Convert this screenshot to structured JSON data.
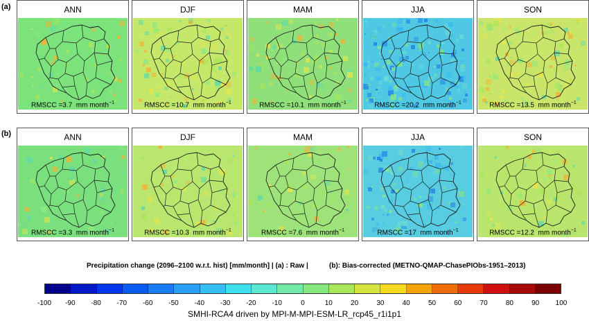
{
  "row_labels": [
    "(a)",
    "(b)"
  ],
  "rows": [
    {
      "panels": [
        {
          "title": "ANN",
          "rms_value": "3.7",
          "base_color": "#7ce27c",
          "noise": "low"
        },
        {
          "title": "DJF",
          "rms_value": "10.7",
          "base_color": "#c6e86a",
          "noise": "mid"
        },
        {
          "title": "MAM",
          "rms_value": "10.1",
          "base_color": "#8fe07a",
          "noise": "mid"
        },
        {
          "title": "JJA",
          "rms_value": "20.2",
          "base_color": "#4fc8e4",
          "noise": "high"
        },
        {
          "title": "SON",
          "rms_value": "13.5",
          "base_color": "#c9e56a",
          "noise": "mid"
        }
      ]
    },
    {
      "panels": [
        {
          "title": "ANN",
          "rms_value": "3.3",
          "base_color": "#7ae07e",
          "noise": "low"
        },
        {
          "title": "DJF",
          "rms_value": "10.3",
          "base_color": "#b8e66e",
          "noise": "low"
        },
        {
          "title": "MAM",
          "rms_value": "7.6",
          "base_color": "#9ee27a",
          "noise": "low"
        },
        {
          "title": "JJA",
          "rms_value": "17",
          "base_color": "#58cce0",
          "noise": "mid"
        },
        {
          "title": "SON",
          "rms_value": "12.2",
          "base_color": "#b9e56c",
          "noise": "low"
        }
      ]
    }
  ],
  "rms_prefix": "RMSCC =",
  "rms_unit": "mm month",
  "rms_unit_exp": "−1",
  "caption_left": "Precipitation change (2096–2100 w.r.t. hist) [mm/month] |  (a) : Raw |",
  "caption_right": "(b): Bias-corrected (METNO-QMAP-ChasePIObs-1951–2013)",
  "colorbar": {
    "colors": [
      "#00008b",
      "#0019c8",
      "#0037ec",
      "#0a5bf0",
      "#1a7cf4",
      "#2aa0f6",
      "#35c0f4",
      "#3fe0f0",
      "#5ae8d2",
      "#72eaa8",
      "#86e87e",
      "#a8e65a",
      "#d3e43e",
      "#f4d81e",
      "#f4a40a",
      "#f06e0a",
      "#e83a0a",
      "#d01010",
      "#a80808",
      "#7a0202"
    ],
    "ticks": [
      "-100",
      "-90",
      "-80",
      "-70",
      "-60",
      "-50",
      "-40",
      "-30",
      "-20",
      "-10",
      "0",
      "10",
      "20",
      "30",
      "40",
      "50",
      "60",
      "70",
      "80",
      "90",
      "100"
    ]
  },
  "footer": "SMHI-RCA4 driven by MPI-M-MPI-ESM-LR_rcp45_r1i1p1",
  "map_colors": {
    "border": "#1a1a1a",
    "yellow": "#e8e64a",
    "orange": "#f2b233",
    "cyan": "#3ab8ee",
    "blue": "#1f7de6"
  }
}
